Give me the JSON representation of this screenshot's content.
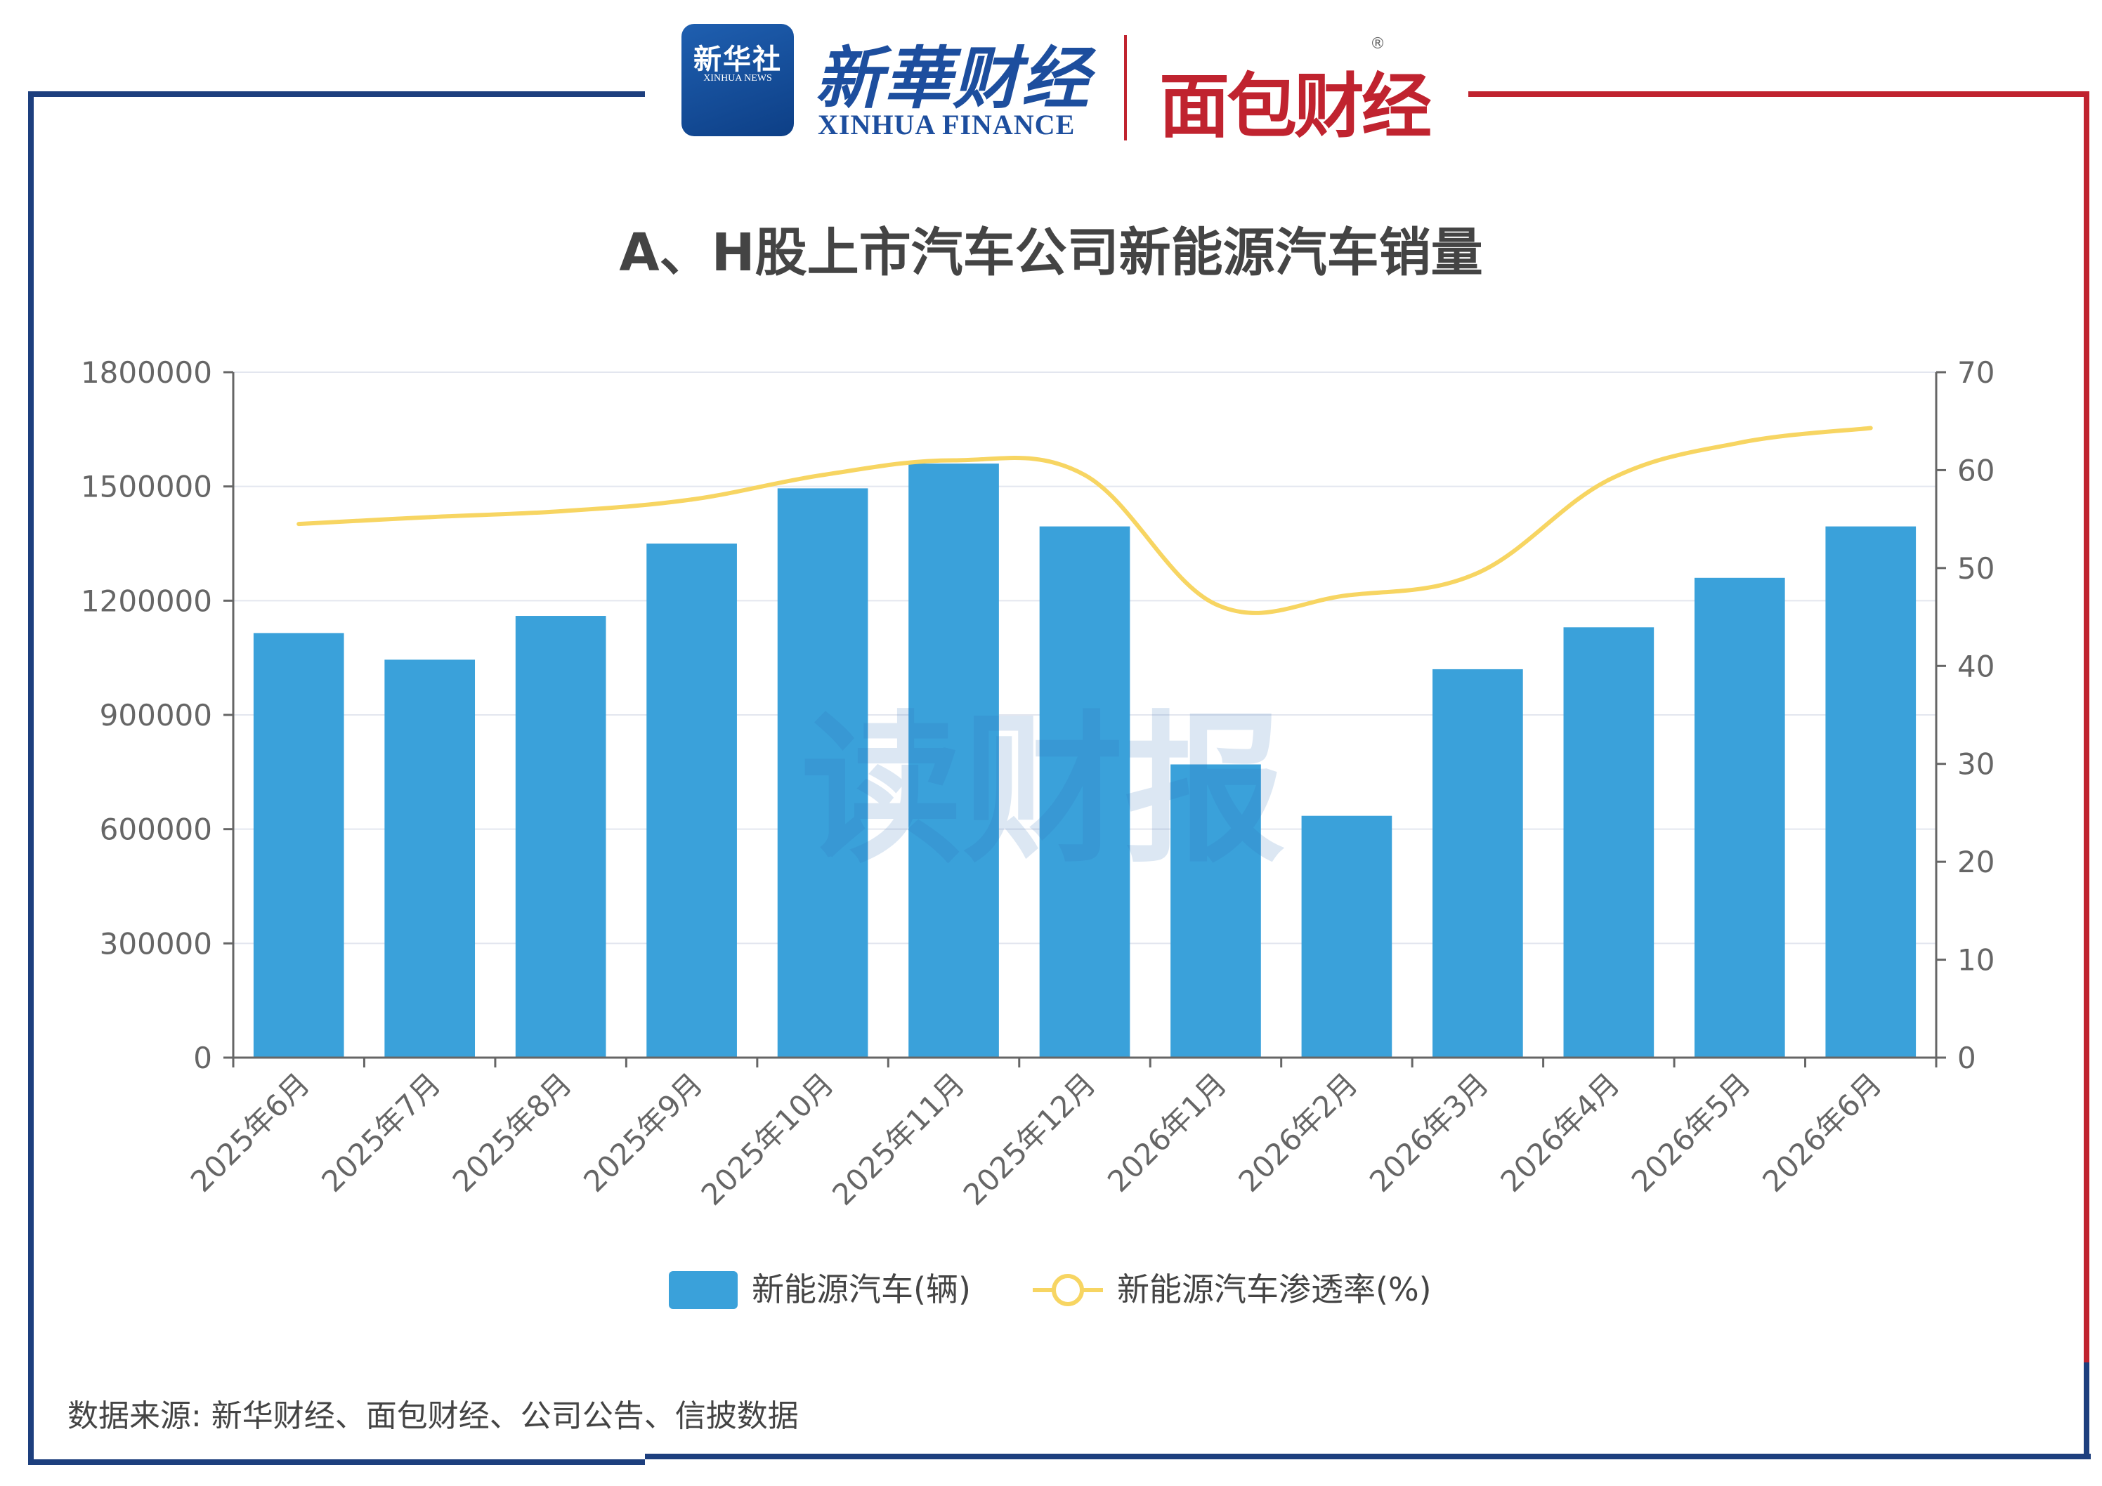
{
  "header": {
    "badge_cn": "新华社",
    "badge_en": "XINHUA NEWS",
    "brand_cn": "新華财经",
    "brand_en": "XINHUA FINANCE",
    "partner": "面包财经",
    "registered": "®"
  },
  "watermark": "读财报",
  "source": "数据来源: 新华财经、面包财经、公司公告、信披数据",
  "colors": {
    "bar": "#3aa1da",
    "line": "#f7d562",
    "frame_left": "#1d3f7e",
    "frame_right": "#c0232f"
  },
  "chart_data": {
    "type": "bar",
    "title": "A、H股上市汽车公司新能源汽车销量",
    "categories": [
      "2025年6月",
      "2025年7月",
      "2025年8月",
      "2025年9月",
      "2025年10月",
      "2025年11月",
      "2025年12月",
      "2026年1月",
      "2026年2月",
      "2026年3月",
      "2026年4月",
      "2026年5月",
      "2026年6月"
    ],
    "series": [
      {
        "name": "新能源汽车(辆)",
        "type": "bar",
        "axis": "left",
        "values": [
          1115000,
          1045000,
          1160000,
          1350000,
          1495000,
          1560000,
          1395000,
          770000,
          635000,
          1020000,
          1130000,
          1260000,
          1395000
        ]
      },
      {
        "name": "新能源汽车渗透率(%)",
        "type": "line",
        "axis": "right",
        "values": [
          54.5,
          55.2,
          55.8,
          57.0,
          59.5,
          61.0,
          59.5,
          46.3,
          47.2,
          49.5,
          59.0,
          62.8,
          64.3
        ]
      }
    ],
    "y_left": {
      "min": 0,
      "max": 1800000,
      "ticks": [
        "0",
        "300000",
        "600000",
        "900000",
        "1200000",
        "1500000",
        "1800000"
      ]
    },
    "y_right": {
      "min": 0,
      "max": 70,
      "ticks": [
        "0",
        "10",
        "20",
        "30",
        "40",
        "50",
        "60",
        "70"
      ]
    },
    "grid": true,
    "legend_position": "bottom"
  }
}
